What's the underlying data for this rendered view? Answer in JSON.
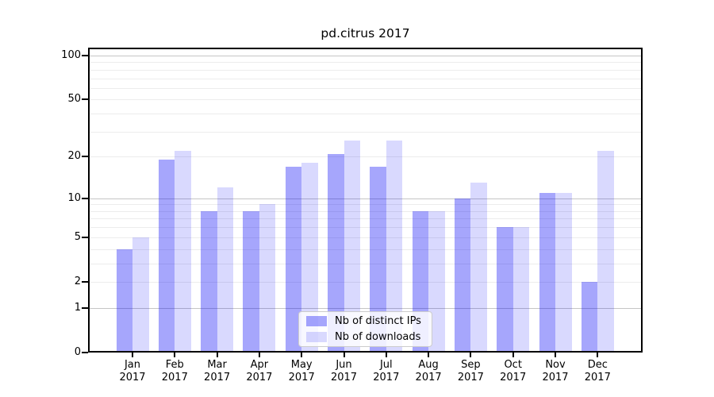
{
  "chart_data": {
    "type": "bar",
    "title": "pd.citrus 2017",
    "xlabel": "",
    "ylabel": "",
    "yscale": "log1p",
    "ylim": [
      0,
      113
    ],
    "grid": true,
    "legend_position": "lower center",
    "categories": [
      "Jan",
      "Feb",
      "Mar",
      "Apr",
      "May",
      "Jun",
      "Jul",
      "Aug",
      "Sep",
      "Oct",
      "Nov",
      "Dec"
    ],
    "x_tick_second_line": "2017",
    "series": [
      {
        "name": "Nb of distinct IPs",
        "color": "rgba(0,0,245,0.35)",
        "values": [
          4,
          19,
          8,
          8,
          17,
          21,
          17,
          8,
          10,
          6,
          11,
          2
        ]
      },
      {
        "name": "Nb of downloads",
        "color": "rgba(0,0,245,0.15)",
        "values": [
          5,
          22,
          12,
          9,
          18,
          26,
          26,
          8,
          13,
          6,
          11,
          22
        ]
      }
    ],
    "y_ticks": [
      0,
      1,
      2,
      5,
      10,
      20,
      50,
      100
    ],
    "y_major_gridlines": [
      1,
      10,
      100
    ],
    "y_minor_gridlines": [
      2,
      3,
      4,
      5,
      6,
      7,
      8,
      9,
      20,
      30,
      40,
      50,
      60,
      70,
      80,
      90
    ],
    "colors": {
      "major_grid": "#c5c5c5",
      "minor_grid": "#ececec",
      "spine": "#000000",
      "text": "#000000"
    }
  }
}
